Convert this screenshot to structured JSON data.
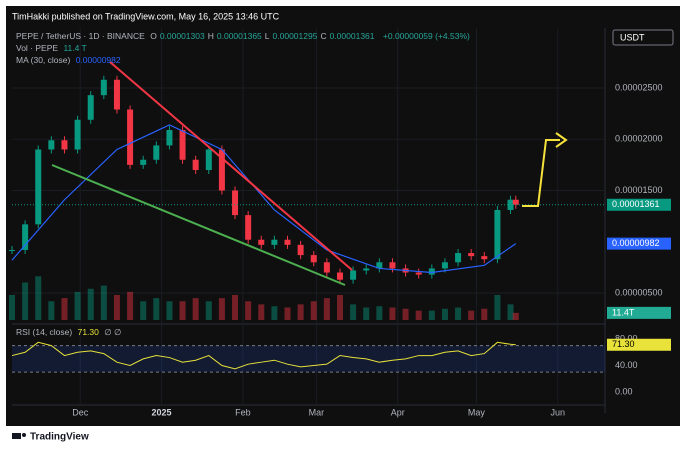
{
  "header": {
    "publisher": "TimHakki published on TradingView.com, May 16, 2025 13:46 UTC"
  },
  "footer": {
    "brand": "TradingView"
  },
  "chart_data": [
    {
      "type": "candlestick",
      "title": "PEPE / TetherUS · 1D · BINANCE",
      "ohlc": [
        {
          "label": "O",
          "value": "0.00001303"
        },
        {
          "label": "H",
          "value": "0.00001365"
        },
        {
          "label": "L",
          "value": "0.00001295"
        },
        {
          "label": "C",
          "value": "0.00001361"
        }
      ],
      "change": "+0.00000059 (+4.53%)",
      "currency": "USDT",
      "last_label": "0.00001361",
      "up_color": "#089981",
      "down_color": "#f23645",
      "x": [
        0,
        5,
        10,
        15,
        20,
        25,
        30,
        35,
        40,
        45,
        50,
        55,
        60,
        65,
        70,
        75,
        80,
        85,
        90,
        95,
        100,
        105,
        110,
        115,
        120,
        125,
        130,
        135,
        140,
        145,
        150,
        155,
        160,
        165,
        170,
        175,
        180,
        185,
        190,
        192
      ],
      "values": [
        9.2e-06,
        1.17e-05,
        1.9e-05,
        1.99e-05,
        1.9e-05,
        2.19e-05,
        2.43e-05,
        2.58e-05,
        2.29e-05,
        1.75e-05,
        1.8e-05,
        1.94e-05,
        2.09e-05,
        1.8e-05,
        1.7e-05,
        1.9e-05,
        1.5e-05,
        1.26e-05,
        1.02e-05,
        9.7e-06,
        1.02e-05,
        9.7e-06,
        8.7e-06,
        8e-06,
        7e-06,
        6.3e-06,
        7.2e-06,
        7.4e-06,
        8e-06,
        7.4e-06,
        7e-06,
        6.8e-06,
        7.4e-06,
        8e-06,
        8.9e-06,
        8.6e-06,
        8.3e-06,
        1.31e-05,
        1.41e-05,
        1.361e-05
      ],
      "ma": {
        "name": "MA (30, close)",
        "color": "#2962ff",
        "last_label": "0.00000982",
        "x": [
          0,
          20,
          40,
          60,
          80,
          100,
          120,
          140,
          160,
          180,
          192
        ],
        "values": [
          8.2e-06,
          1.41e-05,
          1.9e-05,
          2.14e-05,
          1.9e-05,
          1.31e-05,
          9.2e-06,
          7.4e-06,
          7e-06,
          7.7e-06,
          9.82e-06
        ]
      },
      "volume": {
        "name": "Vol · PEPE",
        "last": "11.4 T",
        "tag": "11.4T",
        "ylim": [
          0,
          80
        ],
        "values": [
          40,
          60,
          70,
          30,
          35,
          45,
          50,
          55,
          40,
          45,
          30,
          35,
          30,
          30,
          35,
          30,
          35,
          40,
          30,
          25,
          22,
          20,
          25,
          30,
          35,
          40,
          25,
          20,
          22,
          20,
          18,
          15,
          15,
          18,
          20,
          15,
          18,
          40,
          25,
          11.4
        ]
      },
      "xlim": [
        0,
        226
      ],
      "xticks": [
        {
          "value": 26,
          "label": "Dec"
        },
        {
          "value": 57,
          "label": "2025"
        },
        {
          "value": 88,
          "label": "Feb"
        },
        {
          "value": 116,
          "label": "Mar"
        },
        {
          "value": 147,
          "label": "Apr"
        },
        {
          "value": 177,
          "label": "May"
        },
        {
          "value": 208,
          "label": "Jun"
        }
      ],
      "ylim": [
        2.37e-06,
        3.085e-05
      ],
      "yticks": [
        {
          "value": 2.5e-05,
          "label": "0.00002500"
        },
        {
          "value": 2e-05,
          "label": "0.00002000"
        },
        {
          "value": 1.5e-05,
          "label": "0.00001500"
        },
        {
          "value": 5e-06,
          "label": "0.00000500"
        }
      ]
    },
    {
      "type": "line",
      "title": "RSI (14, close)",
      "last_label": "71.30",
      "extra": "∅ ∅",
      "series": [
        {
          "name": "RSI",
          "color": "#e8e23a",
          "x": [
            0,
            5,
            10,
            15,
            20,
            25,
            30,
            35,
            40,
            45,
            50,
            55,
            60,
            65,
            70,
            75,
            80,
            85,
            90,
            95,
            100,
            105,
            110,
            115,
            120,
            125,
            130,
            135,
            140,
            145,
            150,
            155,
            160,
            165,
            170,
            175,
            180,
            185,
            190,
            192
          ],
          "values": [
            55,
            60,
            75,
            70,
            55,
            60,
            62,
            58,
            45,
            40,
            50,
            55,
            52,
            45,
            48,
            55,
            40,
            35,
            42,
            45,
            48,
            42,
            38,
            40,
            42,
            55,
            52,
            50,
            45,
            48,
            50,
            55,
            55,
            60,
            62,
            55,
            58,
            75,
            72,
            71.3
          ]
        }
      ],
      "levels": [
        70,
        30
      ],
      "ylim": [
        -18.1,
        96.6
      ],
      "yticks": [
        {
          "value": 80,
          "label": "80.00"
        },
        {
          "value": 40,
          "label": "40.00"
        },
        {
          "value": 0,
          "label": "0.00"
        }
      ]
    }
  ]
}
